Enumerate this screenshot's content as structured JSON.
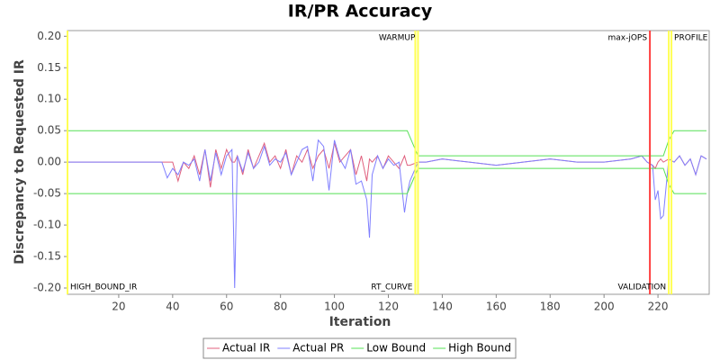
{
  "chart_data": {
    "type": "line",
    "title": "IR/PR Accuracy",
    "x_label": "Iteration",
    "y_label": "Discrepancy to Requested IR",
    "x": [
      1,
      36,
      38,
      40,
      42,
      44,
      46,
      48,
      50,
      52,
      54,
      56,
      58,
      60,
      62,
      63,
      64,
      66,
      68,
      70,
      72,
      74,
      76,
      78,
      80,
      82,
      84,
      86,
      88,
      90,
      92,
      94,
      96,
      98,
      100,
      102,
      104,
      106,
      108,
      110,
      112,
      113,
      114,
      116,
      118,
      120,
      122,
      124,
      126,
      127,
      128,
      131,
      134,
      140,
      150,
      160,
      170,
      180,
      190,
      200,
      210,
      214,
      216,
      218,
      219,
      220,
      221,
      222,
      224,
      226,
      228,
      230,
      232,
      234,
      236,
      238
    ],
    "series": [
      {
        "name": "Actual IR",
        "color": "#e0607e",
        "values": [
          0,
          0,
          0,
          0,
          -0.03,
          0,
          -0.01,
          0.01,
          -0.02,
          0.02,
          -0.04,
          0.02,
          -0.01,
          0.02,
          0,
          0,
          0.01,
          -0.02,
          0.02,
          -0.01,
          0.01,
          0.03,
          0,
          0.01,
          -0.01,
          0.02,
          -0.02,
          0.01,
          0,
          0.02,
          -0.01,
          0.01,
          0.02,
          -0.01,
          0.03,
          0,
          0.01,
          0.02,
          -0.02,
          0.01,
          -0.03,
          0.005,
          0,
          0.01,
          -0.01,
          0.01,
          0,
          -0.01,
          0.01,
          -0.005,
          -0.005,
          0,
          0,
          0.005,
          0,
          -0.005,
          0,
          0.005,
          0,
          0,
          0.005,
          0.01,
          0,
          -0.005,
          -0.01,
          0,
          0.005,
          0,
          0.005,
          0,
          0.01,
          -0.005,
          0.005,
          -0.02,
          0.01,
          0.005
        ]
      },
      {
        "name": "Actual PR",
        "color": "#7f7fff",
        "values": [
          0,
          0,
          -0.025,
          -0.01,
          -0.02,
          0,
          -0.005,
          0.005,
          -0.03,
          0.02,
          -0.03,
          0.015,
          -0.02,
          0.01,
          0.02,
          -0.2,
          0.01,
          -0.015,
          0.015,
          -0.01,
          0,
          0.025,
          -0.005,
          0.005,
          0,
          0.015,
          -0.02,
          0,
          0.02,
          0.025,
          -0.03,
          0.035,
          0.025,
          -0.045,
          0.035,
          0.005,
          -0.01,
          0.02,
          -0.035,
          -0.03,
          -0.06,
          -0.12,
          -0.02,
          0.01,
          -0.01,
          0.005,
          -0.005,
          0,
          -0.08,
          -0.05,
          -0.03,
          0,
          0,
          0.005,
          0,
          -0.005,
          0,
          0.005,
          0,
          0,
          0.005,
          0.01,
          0,
          -0.005,
          -0.06,
          -0.045,
          -0.09,
          -0.085,
          0.005,
          0,
          0.01,
          -0.005,
          0.005,
          -0.02,
          0.01,
          0.005
        ]
      },
      {
        "name": "Low Bound",
        "color": "#55e055",
        "values": [
          -0.05,
          -0.05,
          -0.05,
          -0.05,
          -0.05,
          -0.05,
          -0.05,
          -0.05,
          -0.05,
          -0.05,
          -0.05,
          -0.05,
          -0.05,
          -0.05,
          -0.05,
          -0.05,
          -0.05,
          -0.05,
          -0.05,
          -0.05,
          -0.05,
          -0.05,
          -0.05,
          -0.05,
          -0.05,
          -0.05,
          -0.05,
          -0.05,
          -0.05,
          -0.05,
          -0.05,
          -0.05,
          -0.05,
          -0.05,
          -0.05,
          -0.05,
          -0.05,
          -0.05,
          -0.05,
          -0.05,
          -0.05,
          -0.05,
          -0.05,
          -0.05,
          -0.05,
          -0.05,
          -0.05,
          -0.05,
          -0.05,
          -0.05,
          -0.04,
          -0.01,
          -0.01,
          -0.01,
          -0.01,
          -0.01,
          -0.01,
          -0.01,
          -0.01,
          -0.01,
          -0.01,
          -0.01,
          -0.01,
          -0.01,
          -0.01,
          -0.01,
          -0.01,
          -0.01,
          -0.035,
          -0.05,
          -0.05,
          -0.05,
          -0.05,
          -0.05,
          -0.05,
          -0.05
        ]
      },
      {
        "name": "High Bound",
        "color": "#55e055",
        "values": [
          0.05,
          0.05,
          0.05,
          0.05,
          0.05,
          0.05,
          0.05,
          0.05,
          0.05,
          0.05,
          0.05,
          0.05,
          0.05,
          0.05,
          0.05,
          0.05,
          0.05,
          0.05,
          0.05,
          0.05,
          0.05,
          0.05,
          0.05,
          0.05,
          0.05,
          0.05,
          0.05,
          0.05,
          0.05,
          0.05,
          0.05,
          0.05,
          0.05,
          0.05,
          0.05,
          0.05,
          0.05,
          0.05,
          0.05,
          0.05,
          0.05,
          0.05,
          0.05,
          0.05,
          0.05,
          0.05,
          0.05,
          0.05,
          0.05,
          0.05,
          0.04,
          0.01,
          0.01,
          0.01,
          0.01,
          0.01,
          0.01,
          0.01,
          0.01,
          0.01,
          0.01,
          0.01,
          0.01,
          0.01,
          0.01,
          0.01,
          0.01,
          0.01,
          0.035,
          0.05,
          0.05,
          0.05,
          0.05,
          0.05,
          0.05,
          0.05
        ]
      }
    ],
    "markers": [
      {
        "label": "HIGH_BOUND_IR",
        "x": 1,
        "color": "#ffff55",
        "label_side": "right",
        "label_pos": "bottom"
      },
      {
        "label": "RT_CURVE",
        "x": 130,
        "color": "#ffff55",
        "label_side": "left",
        "label_pos": "bottom"
      },
      {
        "label": "WARMUP",
        "x": 131,
        "color": "#ffff55",
        "label_side": "left",
        "label_pos": "top"
      },
      {
        "label": "max-jOPS",
        "x": 217,
        "color": "#ff4040",
        "label_side": "left",
        "label_pos": "top"
      },
      {
        "label": "VALIDATION",
        "x": 224,
        "color": "#ffff55",
        "label_side": "left",
        "label_pos": "bottom"
      },
      {
        "label": "PROFILE",
        "x": 225,
        "color": "#ffff55",
        "label_side": "right",
        "label_pos": "top"
      }
    ],
    "xlim": [
      1,
      239
    ],
    "xticks": [
      20,
      40,
      60,
      80,
      100,
      120,
      140,
      160,
      180,
      200,
      220
    ],
    "ylim": [
      -0.21,
      0.209
    ],
    "yticks": [
      {
        "value": -0.2,
        "label": "-0.20"
      },
      {
        "value": -0.15,
        "label": "-0.15"
      },
      {
        "value": -0.1,
        "label": "-0.10"
      },
      {
        "value": -0.05,
        "label": "-0.05"
      },
      {
        "value": 0,
        "label": "0.00"
      },
      {
        "value": 0.05,
        "label": "0.05"
      },
      {
        "value": 0.1,
        "label": "0.10"
      },
      {
        "value": 0.15,
        "label": "0.15"
      },
      {
        "value": 0.2,
        "label": "0.20"
      }
    ],
    "grid": false,
    "legend": "bottom"
  }
}
